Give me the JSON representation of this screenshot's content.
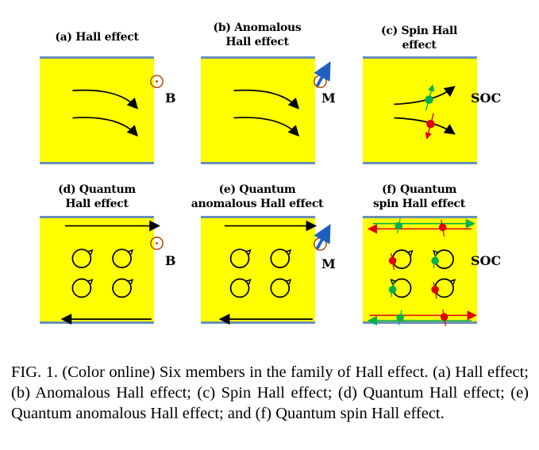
{
  "panels": [
    {
      "title_line1": "(a) Hall effect",
      "title_line2": "",
      "label": "B"
    },
    {
      "title_line1": "(b) Anomalous",
      "title_line2": "Hall effect",
      "label": "M"
    },
    {
      "title_line1": "(c) Spin Hall",
      "title_line2": "effect",
      "label": "SOC"
    },
    {
      "title_line1": "(d) Quantum",
      "title_line2": "Hall effect",
      "label": "B"
    },
    {
      "title_line1": "(e) Quantum",
      "title_line2": "anomalous Hall effect",
      "label": "M"
    },
    {
      "title_line1": "(f) Quantum",
      "title_line2": "spin Hall effect",
      "label": "SOC"
    }
  ],
  "caption": "FIG. 1.  (Color online) Six members in the family of Hall effect. (a) Hall effect; (b) Anomalous Hall effect; (c) Spin Hall effect; (d) Quantum Hall effect; (e) Quantum anomalous Hall effect; and (f) Quantum spin Hall effect.",
  "colors": {
    "panel_fill": "#ffff00",
    "edge": "#6a8fb5",
    "spin_up": "#00b050",
    "spin_down": "#e00000",
    "magnet": "#1f5fbf"
  }
}
